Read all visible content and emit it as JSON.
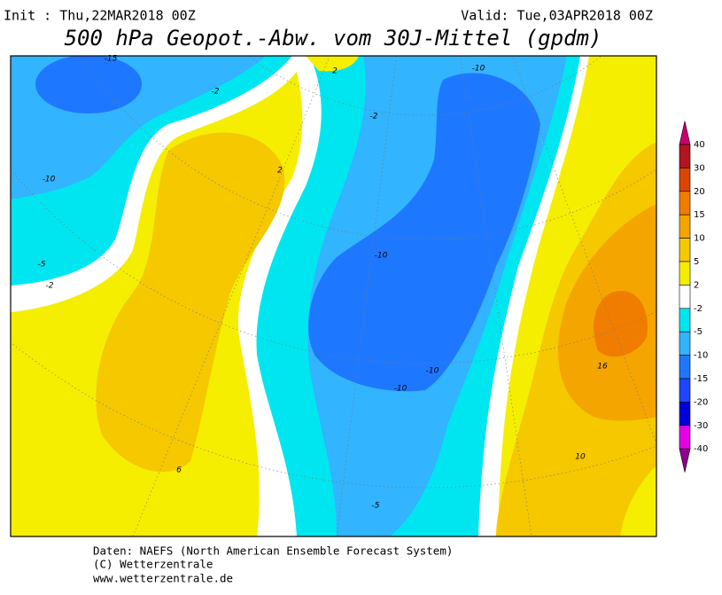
{
  "header": {
    "init": "Init : Thu,22MAR2018 00Z",
    "valid": "Valid: Tue,03APR2018 00Z",
    "title": "500 hPa Geopot.-Abw. vom 30J-Mittel (gpdm)"
  },
  "map": {
    "contour_labels": [
      "-15",
      "-10",
      "-5",
      "-2",
      "-2",
      "2",
      "-10",
      "2",
      "-2",
      "-10",
      "-10",
      "-10",
      "-5",
      "6",
      "16",
      "10"
    ]
  },
  "colorbar": {
    "levels": [
      40,
      30,
      20,
      15,
      10,
      5,
      2,
      -2,
      -5,
      -10,
      -15,
      -20,
      -30,
      -40
    ],
    "colors": [
      "#c8006e",
      "#b4141e",
      "#dc4600",
      "#f07d00",
      "#f5a500",
      "#f5c800",
      "#f5ee00",
      "#ffffff",
      "#00e6f0",
      "#32b4ff",
      "#1e78ff",
      "#1e46ff",
      "#0000dc",
      "#e600e6",
      "#8c008c"
    ]
  },
  "footer": {
    "source": "Daten: NAEFS (North American Ensemble Forecast System)",
    "copyright": "(C) Wetterzentrale",
    "url": "www.wetterzentrale.de"
  }
}
